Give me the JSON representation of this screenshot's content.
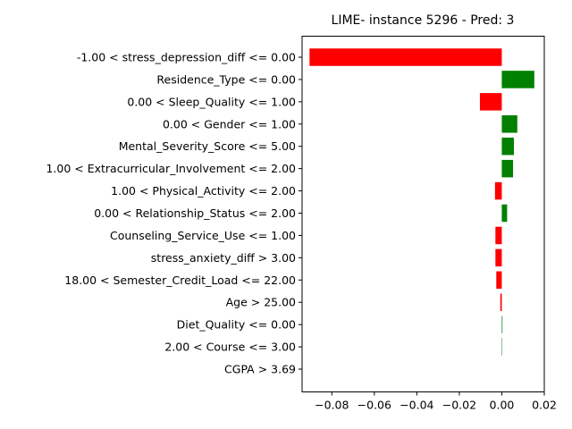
{
  "chart_data": {
    "type": "bar",
    "orientation": "horizontal",
    "title": "LIME- instance 5296 - Pred: 3",
    "xlabel": "",
    "ylabel": "",
    "xlim": [
      -0.094,
      0.02
    ],
    "xticks": [
      -0.08,
      -0.06,
      -0.04,
      -0.02,
      0.0,
      0.02
    ],
    "xtick_labels": [
      "−0.08",
      "−0.06",
      "−0.04",
      "−0.02",
      "0.00",
      "0.02"
    ],
    "grid": false,
    "colors": {
      "positive": "#008000",
      "negative": "#ff0000"
    },
    "categories": [
      "-1.00 < stress_depression_diff <= 0.00",
      "Residence_Type <= 0.00",
      "0.00 < Sleep_Quality <= 1.00",
      "0.00 < Gender <= 1.00",
      "Mental_Severity_Score <= 5.00",
      "1.00 < Extracurricular_Involvement <= 2.00",
      "1.00 < Physical_Activity <= 2.00",
      "0.00 < Relationship_Status <= 2.00",
      "Counseling_Service_Use <= 1.00",
      "stress_anxiety_diff > 3.00",
      "18.00 < Semester_Credit_Load <= 22.00",
      "Age > 25.00",
      "Diet_Quality <= 0.00",
      "2.00 < Course <= 3.00",
      "CGPA > 3.69"
    ],
    "values": [
      -0.0905,
      0.0153,
      -0.0103,
      0.0073,
      0.0057,
      0.0053,
      -0.0032,
      0.0025,
      -0.003,
      -0.003,
      -0.0026,
      -0.0007,
      0.0003,
      0.0002,
      0.0
    ]
  }
}
